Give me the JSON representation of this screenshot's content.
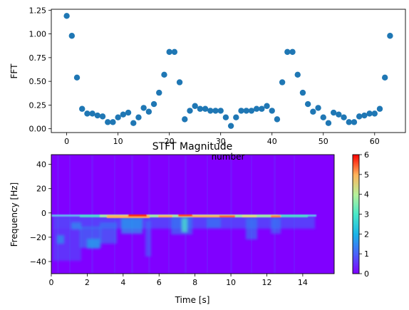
{
  "chart_data": [
    {
      "type": "scatter",
      "xlabel": "number",
      "ylabel": "FFT",
      "xlim": [
        -3,
        66
      ],
      "ylim": [
        -0.04,
        1.26
      ],
      "x_ticks": [
        0,
        10,
        20,
        30,
        40,
        50,
        60
      ],
      "y_ticks": [
        0.0,
        0.25,
        0.5,
        0.75,
        1.0,
        1.25
      ],
      "y_tick_labels": [
        "0.00",
        "0.25",
        "0.50",
        "0.75",
        "1.00",
        "1.25"
      ],
      "marker_color": "#1f77b4",
      "grid": false,
      "x": [
        0,
        1,
        2,
        3,
        4,
        5,
        6,
        7,
        8,
        9,
        10,
        11,
        12,
        13,
        14,
        15,
        16,
        17,
        18,
        19,
        20,
        21,
        22,
        23,
        24,
        25,
        26,
        27,
        28,
        29,
        30,
        31,
        32,
        33,
        34,
        35,
        36,
        37,
        38,
        39,
        40,
        41,
        42,
        43,
        44,
        45,
        46,
        47,
        48,
        49,
        50,
        51,
        52,
        53,
        54,
        55,
        56,
        57,
        58,
        59,
        60,
        61,
        62,
        63
      ],
      "y": [
        1.19,
        0.98,
        0.54,
        0.21,
        0.16,
        0.16,
        0.14,
        0.13,
        0.07,
        0.07,
        0.12,
        0.15,
        0.17,
        0.06,
        0.12,
        0.22,
        0.18,
        0.26,
        0.38,
        0.57,
        0.81,
        0.81,
        0.49,
        0.1,
        0.19,
        0.24,
        0.21,
        0.21,
        0.19,
        0.19,
        0.19,
        0.12,
        0.03,
        0.12,
        0.19,
        0.19,
        0.19,
        0.21,
        0.21,
        0.24,
        0.19,
        0.1,
        0.49,
        0.81,
        0.81,
        0.57,
        0.38,
        0.26,
        0.18,
        0.22,
        0.12,
        0.06,
        0.17,
        0.15,
        0.12,
        0.07,
        0.07,
        0.13,
        0.14,
        0.16,
        0.16,
        0.21,
        0.54,
        0.98
      ]
    },
    {
      "type": "heatmap",
      "title": "STFT Magnitude",
      "xlabel": "Time [s]",
      "ylabel": "Frequency [Hz]",
      "xlim": [
        0,
        15.75
      ],
      "ylim": [
        -50,
        48
      ],
      "x_ticks": [
        0,
        2,
        4,
        6,
        8,
        10,
        12,
        14
      ],
      "y_ticks": [
        -40,
        -20,
        0,
        20,
        40
      ],
      "colormap": "rainbow",
      "colorbar_range": [
        0,
        6
      ],
      "colorbar_ticks": [
        0,
        1,
        2,
        3,
        4,
        5,
        6
      ],
      "background_value": 0
    }
  ]
}
